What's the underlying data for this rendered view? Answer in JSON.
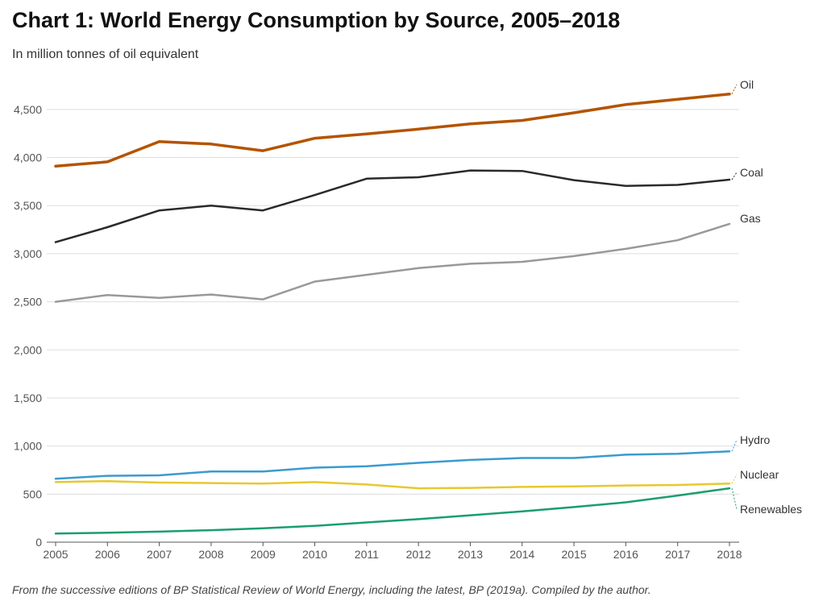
{
  "title": "Chart 1: World Energy Consumption by Source, 2005–2018",
  "subtitle": "In million tonnes of oil equivalent",
  "source": "From the successive editions of BP Statistical Review of World Energy, including the latest, BP (2019a). Compiled by the author.",
  "chart_data": {
    "type": "line",
    "title": "Chart 1: World Energy Consumption by Source, 2005–2018",
    "subtitle": "In million tonnes of oil equivalent",
    "xlabel": "",
    "ylabel": "",
    "x": [
      2005,
      2006,
      2007,
      2008,
      2009,
      2010,
      2011,
      2012,
      2013,
      2014,
      2015,
      2016,
      2017,
      2018
    ],
    "x_tick_labels": [
      "2005",
      "2006",
      "2007",
      "2008",
      "2009",
      "2010",
      "2011",
      "2012",
      "2013",
      "2014",
      "2015",
      "2016",
      "2017",
      "2018"
    ],
    "ylim": [
      0,
      4800
    ],
    "y_ticks": [
      0,
      500,
      1000,
      1500,
      2000,
      2500,
      3000,
      3500,
      4000,
      4500
    ],
    "y_tick_labels": [
      "0",
      "500",
      "1,000",
      "1,500",
      "2,000",
      "2,500",
      "3,000",
      "3,500",
      "4,000",
      "4,500"
    ],
    "grid": true,
    "legend": "direct labels at right end of lines",
    "series": [
      {
        "name": "Oil",
        "color": "#b35400",
        "values": [
          3910,
          3955,
          4165,
          4140,
          4070,
          4200,
          4245,
          4295,
          4350,
          4385,
          4465,
          4550,
          4605,
          4660
        ]
      },
      {
        "name": "Coal",
        "color": "#2a2a2a",
        "values": [
          3120,
          3275,
          3450,
          3500,
          3450,
          3610,
          3780,
          3795,
          3865,
          3860,
          3765,
          3705,
          3715,
          3770
        ]
      },
      {
        "name": "Gas",
        "color": "#999999",
        "values": [
          2500,
          2570,
          2540,
          2575,
          2525,
          2710,
          2780,
          2850,
          2895,
          2915,
          2975,
          3050,
          3140,
          3310
        ]
      },
      {
        "name": "Hydro",
        "color": "#3b9ad0",
        "values": [
          660,
          690,
          695,
          735,
          735,
          775,
          790,
          825,
          855,
          875,
          875,
          910,
          920,
          945
        ]
      },
      {
        "name": "Nuclear",
        "color": "#e8c82e",
        "values": [
          625,
          635,
          620,
          615,
          610,
          625,
          600,
          560,
          565,
          575,
          580,
          590,
          595,
          610
        ]
      },
      {
        "name": "Renewables",
        "color": "#1a9e6e",
        "values": [
          90,
          98,
          110,
          125,
          145,
          170,
          205,
          240,
          280,
          320,
          365,
          415,
          485,
          560
        ]
      }
    ]
  }
}
